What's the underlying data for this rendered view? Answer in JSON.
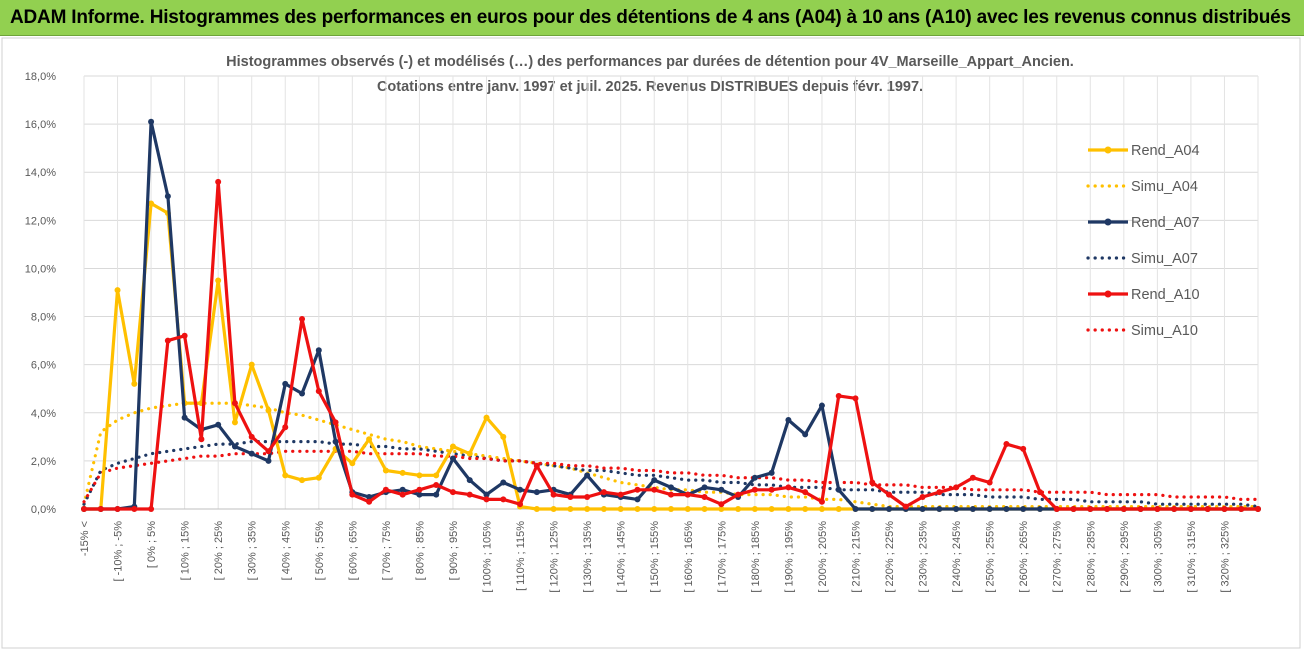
{
  "banner": {
    "title": "ADAM Informe. Histogrammes des performances en euros pour des détentions de 4 ans (A04) à 10 ans (A10) avec les revenus connus distribués"
  },
  "colors": {
    "banner_bg": "#92d050",
    "A04": "#ffc000",
    "A07": "#1f3864",
    "A10": "#ee1111",
    "grid": "#d9d9d9"
  },
  "chart_data": {
    "type": "line",
    "title": "Histogrammes observés (-) et modélisés (…) des performances par durées de détention pour 4V_Marseille_Appart_Ancien.",
    "subtitle": "Cotations entre janv. 1997 et juil. 2025. Revenus DISTRIBUES depuis févr. 1997.",
    "xlabel": "",
    "ylabel": "",
    "ylim": [
      0,
      18
    ],
    "yticks": [
      "0,0%",
      "2,0%",
      "4,0%",
      "6,0%",
      "8,0%",
      "10,0%",
      "12,0%",
      "14,0%",
      "16,0%",
      "18,0%"
    ],
    "grid": true,
    "legend_position": "right",
    "x_tick_labels": [
      "-15% <",
      "[ -10% ; -5%",
      "[ 0% ; 5%",
      "[ 10% ; 15%",
      "[ 20% ; 25%",
      "[ 30% ; 35%",
      "[ 40% ; 45%",
      "[ 50% ; 55%",
      "[ 60% ; 65%",
      "[ 70% ; 75%",
      "[ 80% ; 85%",
      "[ 90% ; 95%",
      "[ 100% ; 105%",
      "[ 110% ; 115%",
      "[ 120% ; 125%",
      "[ 130% ; 135%",
      "[ 140% ; 145%",
      "[ 150% ; 155%",
      "[ 160% ; 165%",
      "[ 170% ; 175%",
      "[ 180% ; 185%",
      "[ 190% ; 195%",
      "[ 200% ; 205%",
      "[ 210% ; 215%",
      "[ 220% ; 225%",
      "[ 230% ; 235%",
      "[ 240% ; 245%",
      "[ 250% ; 255%",
      "[ 260% ; 265%",
      "[ 270% ; 275%",
      "[ 280% ; 285%",
      "[ 290% ; 295%",
      "[ 300% ; 305%",
      "[ 310% ; 315%",
      "[ 320% ; 325%"
    ],
    "series": [
      {
        "name": "Rend_A04",
        "style": "solid",
        "color": "#ffc000",
        "values": [
          0,
          0,
          9.1,
          5.2,
          12.7,
          12.3,
          4.4,
          4.4,
          9.5,
          3.6,
          6.0,
          4.1,
          1.4,
          1.2,
          1.3,
          2.5,
          1.9,
          2.9,
          1.6,
          1.5,
          1.4,
          1.4,
          2.6,
          2.3,
          3.8,
          3.0,
          0.1,
          0,
          0,
          0,
          0,
          0,
          0,
          0,
          0,
          0,
          0,
          0,
          0,
          0,
          0,
          0,
          0,
          0,
          0,
          0,
          0,
          0,
          0,
          0,
          0,
          0,
          0,
          0,
          0,
          0,
          0,
          0,
          0,
          0,
          0,
          0,
          0,
          0,
          0,
          0,
          0,
          0,
          0,
          0,
          0
        ]
      },
      {
        "name": "Simu_A04",
        "style": "dotted",
        "color": "#ffc000",
        "values": [
          0.2,
          3.2,
          3.7,
          4.0,
          4.2,
          4.3,
          4.4,
          4.4,
          4.4,
          4.4,
          4.3,
          4.2,
          4.0,
          3.9,
          3.7,
          3.5,
          3.3,
          3.1,
          2.9,
          2.8,
          2.6,
          2.5,
          2.4,
          2.3,
          2.2,
          2.1,
          2.0,
          1.9,
          1.8,
          1.7,
          1.5,
          1.3,
          1.1,
          1.0,
          0.9,
          0.8,
          0.8,
          0.7,
          0.7,
          0.6,
          0.6,
          0.6,
          0.5,
          0.5,
          0.4,
          0.4,
          0.3,
          0.2,
          0.1,
          0.1,
          0.1,
          0.1,
          0.1,
          0.1,
          0.1,
          0.1,
          0.1,
          0.1,
          0.1,
          0.1,
          0.1,
          0.1,
          0.1,
          0.1,
          0.1,
          0.1,
          0.1,
          0.1,
          0.1,
          0.1,
          0.1
        ]
      },
      {
        "name": "Rend_A07",
        "style": "solid",
        "color": "#1f3864",
        "values": [
          0,
          0,
          0,
          0.1,
          16.1,
          13.0,
          3.8,
          3.3,
          3.5,
          2.6,
          2.3,
          2.0,
          5.2,
          4.8,
          6.6,
          2.8,
          0.7,
          0.5,
          0.7,
          0.8,
          0.6,
          0.6,
          2.1,
          1.2,
          0.6,
          1.1,
          0.8,
          0.7,
          0.8,
          0.6,
          1.4,
          0.6,
          0.5,
          0.4,
          1.2,
          0.9,
          0.6,
          0.9,
          0.8,
          0.5,
          1.3,
          1.5,
          3.7,
          3.1,
          4.3,
          0.8,
          0,
          0,
          0,
          0,
          0,
          0,
          0,
          0,
          0,
          0,
          0,
          0,
          0,
          0,
          0,
          0,
          0,
          0,
          0,
          0,
          0,
          0,
          0,
          0,
          0
        ]
      },
      {
        "name": "Simu_A07",
        "style": "dotted",
        "color": "#1f3864",
        "values": [
          0.2,
          1.6,
          1.9,
          2.1,
          2.3,
          2.4,
          2.5,
          2.6,
          2.7,
          2.7,
          2.8,
          2.8,
          2.8,
          2.8,
          2.8,
          2.7,
          2.7,
          2.6,
          2.6,
          2.5,
          2.5,
          2.4,
          2.3,
          2.2,
          2.1,
          2.0,
          2.0,
          1.9,
          1.8,
          1.7,
          1.6,
          1.6,
          1.5,
          1.4,
          1.4,
          1.3,
          1.2,
          1.2,
          1.1,
          1.1,
          1.0,
          1.0,
          0.9,
          0.9,
          0.9,
          0.8,
          0.8,
          0.8,
          0.7,
          0.7,
          0.7,
          0.6,
          0.6,
          0.6,
          0.5,
          0.5,
          0.5,
          0.4,
          0.4,
          0.4,
          0.3,
          0.3,
          0.3,
          0.3,
          0.2,
          0.2,
          0.2,
          0.2,
          0.2,
          0.2,
          0.1
        ]
      },
      {
        "name": "Rend_A10",
        "style": "solid",
        "color": "#ee1111",
        "values": [
          0,
          0,
          0,
          0,
          0,
          7.0,
          7.2,
          2.9,
          13.6,
          4.4,
          3.0,
          2.4,
          3.4,
          7.9,
          4.9,
          3.6,
          0.6,
          0.3,
          0.8,
          0.6,
          0.8,
          1.0,
          0.7,
          0.6,
          0.4,
          0.4,
          0.2,
          1.8,
          0.6,
          0.5,
          0.5,
          0.7,
          0.6,
          0.8,
          0.8,
          0.6,
          0.6,
          0.5,
          0.2,
          0.6,
          0.8,
          0.8,
          0.9,
          0.7,
          0.3,
          4.7,
          4.6,
          1.1,
          0.6,
          0.1,
          0.5,
          0.7,
          0.9,
          1.3,
          1.1,
          2.7,
          2.5,
          0.7,
          0,
          0,
          0,
          0,
          0,
          0,
          0,
          0,
          0,
          0,
          0,
          0,
          0
        ]
      },
      {
        "name": "Simu_A10",
        "style": "dotted",
        "color": "#ee1111",
        "values": [
          0.3,
          1.5,
          1.7,
          1.8,
          1.9,
          2.0,
          2.1,
          2.2,
          2.2,
          2.3,
          2.3,
          2.3,
          2.4,
          2.4,
          2.4,
          2.4,
          2.4,
          2.3,
          2.3,
          2.3,
          2.3,
          2.2,
          2.2,
          2.1,
          2.1,
          2.0,
          2.0,
          1.9,
          1.9,
          1.8,
          1.8,
          1.7,
          1.7,
          1.6,
          1.6,
          1.5,
          1.5,
          1.4,
          1.4,
          1.3,
          1.3,
          1.3,
          1.2,
          1.2,
          1.1,
          1.1,
          1.1,
          1.0,
          1.0,
          1.0,
          0.9,
          0.9,
          0.9,
          0.8,
          0.8,
          0.8,
          0.8,
          0.7,
          0.7,
          0.7,
          0.7,
          0.6,
          0.6,
          0.6,
          0.6,
          0.5,
          0.5,
          0.5,
          0.5,
          0.4,
          0.4
        ]
      }
    ]
  }
}
